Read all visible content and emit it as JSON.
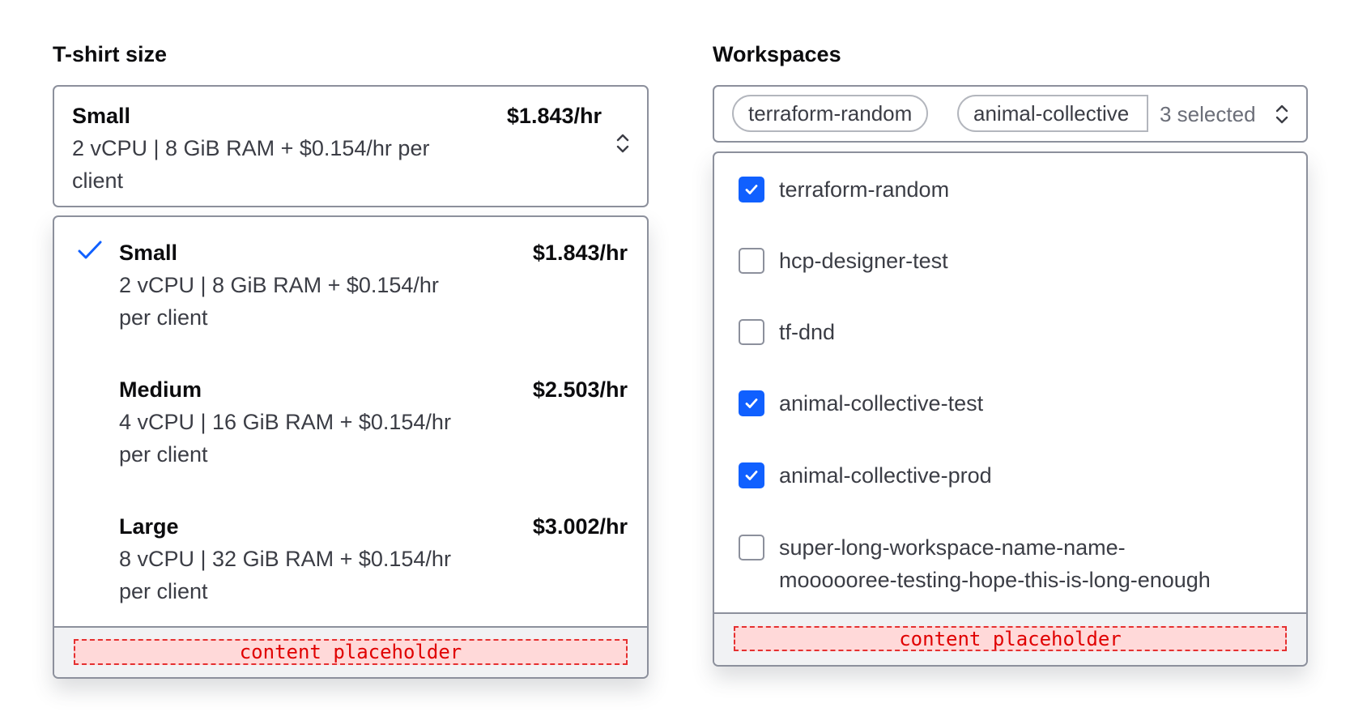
{
  "tshirt": {
    "label": "T-shirt size",
    "selected": {
      "name": "Small",
      "price": "$1.843/hr",
      "description": "2 vCPU | 8 GiB RAM + $0.154/hr per client"
    },
    "options": [
      {
        "name": "Small",
        "price": "$1.843/hr",
        "line1": "2 vCPU | 8 GiB RAM + $0.154/hr",
        "line2": "per client",
        "checked": true
      },
      {
        "name": "Medium",
        "price": "$2.503/hr",
        "line1": "4 vCPU | 16 GiB RAM + $0.154/hr",
        "line2": "per client",
        "checked": false
      },
      {
        "name": "Large",
        "price": "$3.002/hr",
        "line1": "8 vCPU | 32 GiB RAM + $0.154/hr",
        "line2": "per client",
        "checked": false
      }
    ],
    "footer_placeholder": "content placeholder"
  },
  "workspaces": {
    "label": "Workspaces",
    "chips": [
      "terraform-random",
      "animal-collective"
    ],
    "count_text": "3 selected",
    "options": [
      {
        "label": "terraform-random",
        "checked": true
      },
      {
        "label": "hcp-designer-test",
        "checked": false
      },
      {
        "label": "tf-dnd",
        "checked": false
      },
      {
        "label": "animal-collective-test",
        "checked": true
      },
      {
        "label": "animal-collective-prod",
        "checked": true
      },
      {
        "label": "super-long-workspace-name-name-moooooree-testing-hope-this-is-long-enough",
        "line1": "super-long-workspace-name-name-",
        "line2": "moooooree-testing-hope-this-is-long-enough",
        "checked": false
      }
    ],
    "footer_placeholder": "content placeholder"
  },
  "colors": {
    "accent": "#1060ff",
    "border": "#8c909c",
    "text": "#3b3d45",
    "placeholder_bg": "#ffd9d9",
    "placeholder_border": "#e53030"
  }
}
